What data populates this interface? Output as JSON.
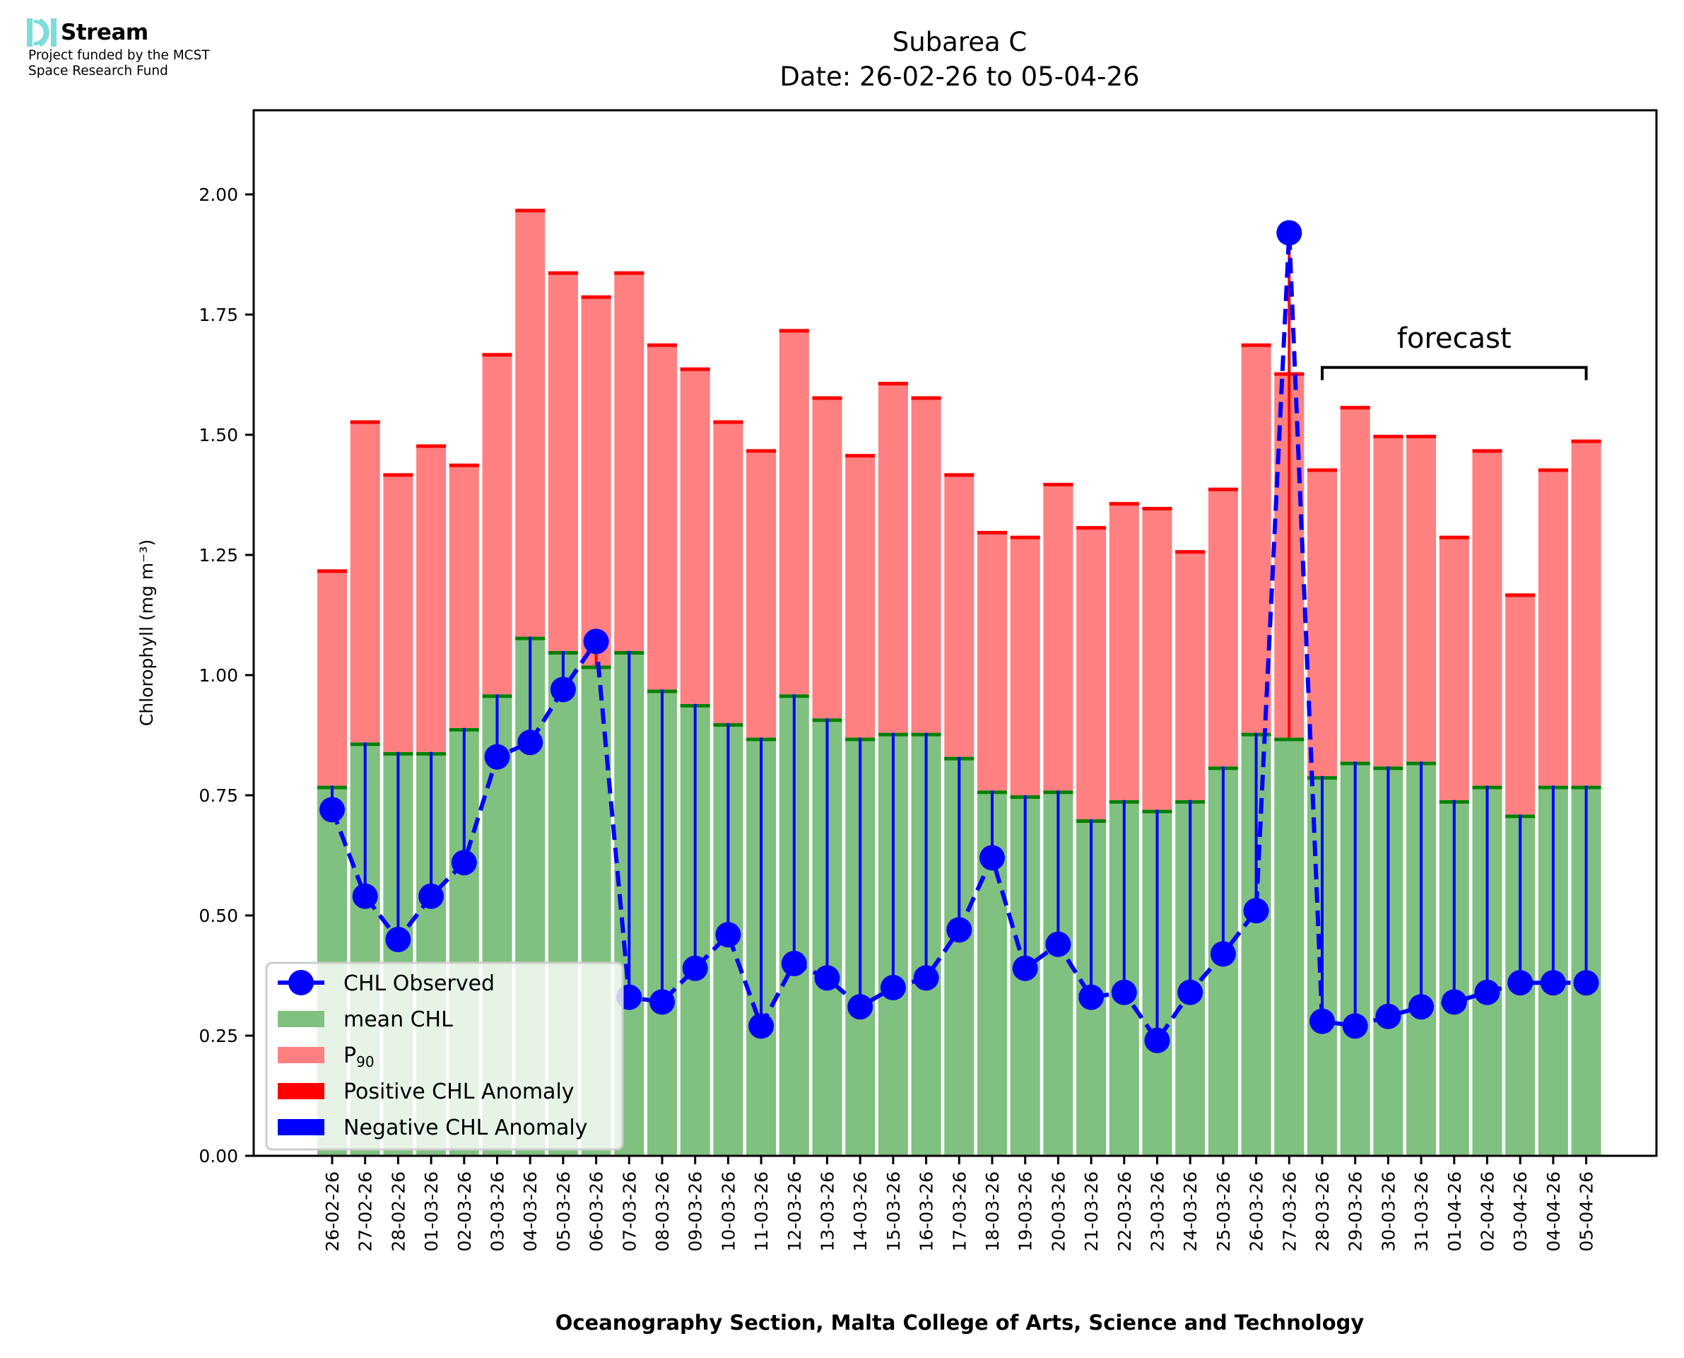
{
  "header": {
    "logo_name": "Stream",
    "logo_icon": "stream-waves-icon",
    "logo_color": "#7fdcdc",
    "funding_line1": "Project funded by the MCST",
    "funding_line2": "Space Research Fund"
  },
  "chart_data": {
    "type": "bar",
    "title": "Subarea C",
    "subtitle": "Date: 26-02-26 to 05-04-26",
    "xlabel": "Oceanography Section, Malta College of Arts, Science and Technology",
    "ylabel": "Chlorophyll (mg m⁻³)",
    "ylim": [
      0,
      2.175
    ],
    "yticks": [
      "0.00",
      "0.25",
      "0.50",
      "0.75",
      "1.00",
      "1.25",
      "1.50",
      "1.75",
      "2.00"
    ],
    "ytick_values": [
      0,
      0.25,
      0.5,
      0.75,
      1.0,
      1.25,
      1.5,
      1.75,
      2.0
    ],
    "grid": false,
    "legend_position": "lower-left",
    "categories": [
      "26-02-26",
      "27-02-26",
      "28-02-26",
      "01-03-26",
      "02-03-26",
      "03-03-26",
      "04-03-26",
      "05-03-26",
      "06-03-26",
      "07-03-26",
      "08-03-26",
      "09-03-26",
      "10-03-26",
      "11-03-26",
      "12-03-26",
      "13-03-26",
      "14-03-26",
      "15-03-26",
      "16-03-26",
      "17-03-26",
      "18-03-26",
      "19-03-26",
      "20-03-26",
      "21-03-26",
      "22-03-26",
      "23-03-26",
      "24-03-26",
      "25-03-26",
      "26-03-26",
      "27-03-26",
      "28-03-26",
      "29-03-26",
      "30-03-26",
      "31-03-26",
      "01-04-26",
      "02-04-26",
      "03-04-26",
      "04-04-26",
      "05-04-26"
    ],
    "series": [
      {
        "name": "mean CHL",
        "kind": "bar",
        "color": "#80c080",
        "edge_color": "#008000",
        "values": [
          0.77,
          0.86,
          0.84,
          0.84,
          0.89,
          0.96,
          1.08,
          1.05,
          1.02,
          1.05,
          0.97,
          0.94,
          0.9,
          0.87,
          0.96,
          0.91,
          0.87,
          0.88,
          0.88,
          0.83,
          0.76,
          0.75,
          0.76,
          0.7,
          0.74,
          0.72,
          0.74,
          0.81,
          0.88,
          0.87,
          0.79,
          0.82,
          0.81,
          0.82,
          0.74,
          0.77,
          0.71,
          0.77,
          0.77
        ]
      },
      {
        "name": "P₉₀",
        "kind": "bar",
        "color": "#ff8080",
        "edge_color": "#ff0000",
        "values": [
          1.22,
          1.53,
          1.42,
          1.48,
          1.44,
          1.67,
          1.97,
          1.84,
          1.79,
          1.84,
          1.69,
          1.64,
          1.53,
          1.47,
          1.72,
          1.58,
          1.46,
          1.61,
          1.58,
          1.42,
          1.3,
          1.29,
          1.4,
          1.31,
          1.36,
          1.35,
          1.26,
          1.39,
          1.69,
          1.63,
          1.43,
          1.56,
          1.5,
          1.5,
          1.29,
          1.47,
          1.17,
          1.43,
          1.49
        ]
      },
      {
        "name": "CHL Observed",
        "kind": "line",
        "color": "#0000ff",
        "linestyle": "dashed",
        "marker": "circle",
        "values": [
          0.72,
          0.54,
          0.45,
          0.54,
          0.61,
          0.83,
          0.86,
          0.97,
          1.07,
          0.33,
          0.32,
          0.39,
          0.46,
          0.27,
          0.4,
          0.37,
          0.31,
          0.35,
          0.37,
          0.47,
          0.62,
          0.39,
          0.44,
          0.33,
          0.34,
          0.24,
          0.34,
          0.42,
          0.51,
          1.92,
          0.28,
          0.27,
          0.29,
          0.31,
          0.32,
          0.34,
          0.36,
          0.36,
          0.36
        ]
      }
    ],
    "legend": [
      {
        "label": "CHL Observed",
        "swatch": "line-marker",
        "color": "#0000ff"
      },
      {
        "label": "mean CHL",
        "swatch": "patch",
        "color": "#80c080"
      },
      {
        "label_main": "P",
        "label_sub": "90",
        "swatch": "patch",
        "color": "#ff8080"
      },
      {
        "label": "Positive CHL Anomaly",
        "swatch": "patch",
        "color": "#ff0000"
      },
      {
        "label": "Negative CHL Anomaly",
        "swatch": "patch",
        "color": "#0000ff"
      }
    ],
    "anomaly_colors": {
      "positive": "#ff0000",
      "negative": "#0000ff"
    },
    "annotations": [
      {
        "text": "forecast",
        "bracket_from": "28-03-26",
        "bracket_to": "05-04-26",
        "bracket_level": 1.64
      }
    ]
  }
}
